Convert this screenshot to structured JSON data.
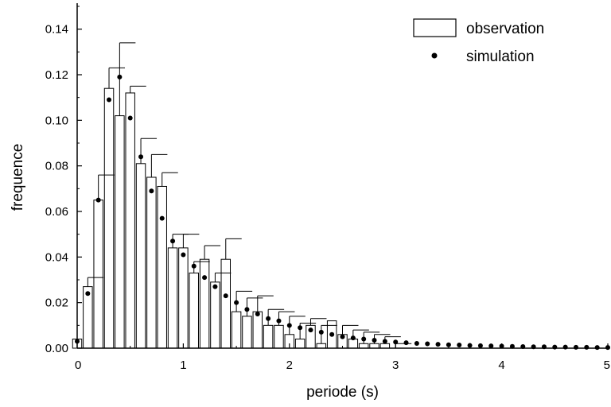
{
  "chart_data": {
    "type": "bar",
    "xlabel": "periode (s)",
    "ylabel": "frequence",
    "xlim": [
      0,
      5
    ],
    "ylim": [
      0,
      0.15
    ],
    "xticks": [
      0,
      1,
      2,
      3,
      4,
      5
    ],
    "xtick_labels": [
      "0",
      "1",
      "2",
      "3",
      "4",
      "5"
    ],
    "yticks": [
      0.0,
      0.02,
      0.04,
      0.06,
      0.08,
      0.1,
      0.12,
      0.14
    ],
    "ytick_labels": [
      "0.00",
      "0.02",
      "0.04",
      "0.06",
      "0.08",
      "0.10",
      "0.12",
      "0.14"
    ],
    "grid": false,
    "legend_position": "top-right",
    "legend": {
      "observation": "observation",
      "simulation": "simulation"
    },
    "observation": {
      "name": "observation",
      "bin_width": 0.1,
      "x": [
        0.0,
        0.1,
        0.2,
        0.3,
        0.4,
        0.5,
        0.6,
        0.7,
        0.8,
        0.9,
        1.0,
        1.1,
        1.2,
        1.3,
        1.4,
        1.5,
        1.6,
        1.7,
        1.8,
        1.9,
        2.0,
        2.1,
        2.2,
        2.3,
        2.4,
        2.5,
        2.6,
        2.7,
        2.8,
        2.9,
        3.0
      ],
      "values": [
        0.004,
        0.027,
        0.065,
        0.114,
        0.102,
        0.112,
        0.081,
        0.075,
        0.071,
        0.044,
        0.044,
        0.033,
        0.039,
        0.029,
        0.039,
        0.016,
        0.014,
        0.016,
        0.01,
        0.01,
        0.006,
        0.004,
        0.01,
        0.002,
        0.012,
        0.006,
        0.004,
        0.002,
        0.002,
        0.002,
        0.0
      ],
      "errors": [
        0.0,
        0.004,
        0.011,
        0.009,
        0.032,
        0.003,
        0.011,
        0.01,
        0.006,
        0.006,
        0.006,
        0.005,
        0.006,
        0.004,
        0.009,
        0.009,
        0.008,
        0.007,
        0.007,
        0.006,
        0.008,
        0.007,
        0.003,
        0.008,
        0.0,
        0.004,
        0.004,
        0.005,
        0.004,
        0.003,
        0.002
      ]
    },
    "simulation": {
      "name": "simulation",
      "x": [
        0.0,
        0.1,
        0.2,
        0.3,
        0.4,
        0.5,
        0.6,
        0.7,
        0.8,
        0.9,
        1.0,
        1.1,
        1.2,
        1.3,
        1.4,
        1.5,
        1.6,
        1.7,
        1.8,
        1.9,
        2.0,
        2.1,
        2.2,
        2.3,
        2.4,
        2.5,
        2.6,
        2.7,
        2.8,
        2.9,
        3.0,
        3.1,
        3.2,
        3.3,
        3.4,
        3.5,
        3.6,
        3.7,
        3.8,
        3.9,
        4.0,
        4.1,
        4.2,
        4.3,
        4.4,
        4.5,
        4.6,
        4.7,
        4.8,
        4.9,
        5.0
      ],
      "values": [
        0.003,
        0.024,
        0.065,
        0.109,
        0.119,
        0.101,
        0.084,
        0.069,
        0.057,
        0.047,
        0.041,
        0.036,
        0.031,
        0.027,
        0.023,
        0.02,
        0.017,
        0.015,
        0.013,
        0.012,
        0.01,
        0.009,
        0.008,
        0.007,
        0.006,
        0.005,
        0.0045,
        0.004,
        0.0035,
        0.003,
        0.0027,
        0.0024,
        0.0021,
        0.0019,
        0.0017,
        0.0015,
        0.0014,
        0.0012,
        0.0011,
        0.001,
        0.0009,
        0.0008,
        0.0007,
        0.0006,
        0.0006,
        0.0005,
        0.0005,
        0.0004,
        0.0004,
        0.0003,
        0.0003
      ]
    }
  }
}
